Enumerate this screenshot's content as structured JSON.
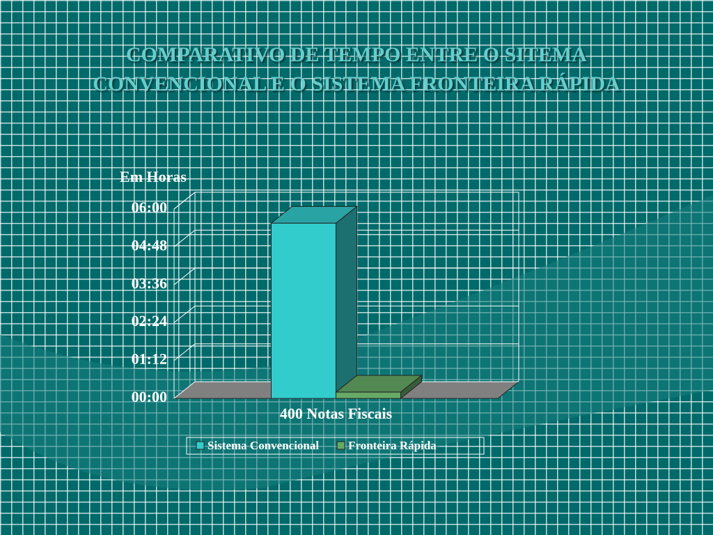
{
  "chart_data": {
    "type": "bar3d",
    "title": "COMPARATIVO DE TEMPO ENTRE O SITEMA CONVENCIONAL E O SISTEMA FRONTEIRA RÁPIDA",
    "y_label": "Em Horas",
    "categories": [
      "400 Notas Fiscais"
    ],
    "series": [
      {
        "name": "Sistema Convencional",
        "color": "#33cccc",
        "values": [
          5.55
        ]
      },
      {
        "name": "Fronteira Rápida",
        "color": "#66aa66",
        "values": [
          0.2
        ]
      }
    ],
    "ylim": [
      0,
      6
    ],
    "yticks": [
      {
        "value": 0,
        "label": "00:00"
      },
      {
        "value": 1.2,
        "label": "01:12"
      },
      {
        "value": 2.4,
        "label": "02:24"
      },
      {
        "value": 3.6,
        "label": "03:36"
      },
      {
        "value": 4.8,
        "label": "04:48"
      },
      {
        "value": 6,
        "label": "06:00"
      }
    ],
    "grid": true,
    "legend": "bottom"
  }
}
